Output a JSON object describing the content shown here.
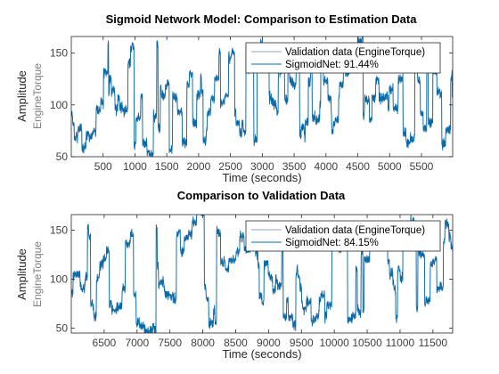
{
  "figure": {
    "background": "#ffffff"
  },
  "colors": {
    "validation": "#8ea3b5",
    "model": "#0a6aa8",
    "axis": "#262626"
  },
  "chart_data": [
    {
      "type": "line",
      "title": "Sigmoid Network Model: Comparison to Estimation Data",
      "xlabel": "Time (seconds)",
      "ylabel": "Amplitude",
      "ylabel_secondary": "EngineTorque",
      "xlim": [
        0,
        5990
      ],
      "ylim": [
        50,
        166
      ],
      "xticks": [
        500,
        1000,
        1500,
        2000,
        2500,
        3000,
        3500,
        4000,
        4500,
        5000,
        5500
      ],
      "yticks": [
        50,
        100,
        150
      ],
      "legend_position": "top-right",
      "grid": false,
      "series": [
        {
          "name": "Validation data (EngineTorque)",
          "color": "#8ea3b5",
          "seed": 11
        },
        {
          "name": "SigmoidNet: 91.44%",
          "color": "#0a6aa8",
          "seed": 11
        }
      ]
    },
    {
      "type": "line",
      "title": "Comparison to Validation Data",
      "xlabel": "Time (seconds)",
      "ylabel": "Amplitude",
      "ylabel_secondary": "EngineTorque",
      "xlim": [
        6000,
        11800
      ],
      "ylim": [
        45,
        166
      ],
      "xticks": [
        6500,
        7000,
        7500,
        8000,
        8500,
        9000,
        9500,
        10000,
        10500,
        11000,
        11500
      ],
      "yticks": [
        50,
        100,
        150
      ],
      "legend_position": "top-right",
      "grid": false,
      "series": [
        {
          "name": "Validation data (EngineTorque)",
          "color": "#8ea3b5",
          "seed": 29
        },
        {
          "name": "SigmoidNet: 84.15%",
          "color": "#0a6aa8",
          "seed": 29
        }
      ]
    }
  ]
}
